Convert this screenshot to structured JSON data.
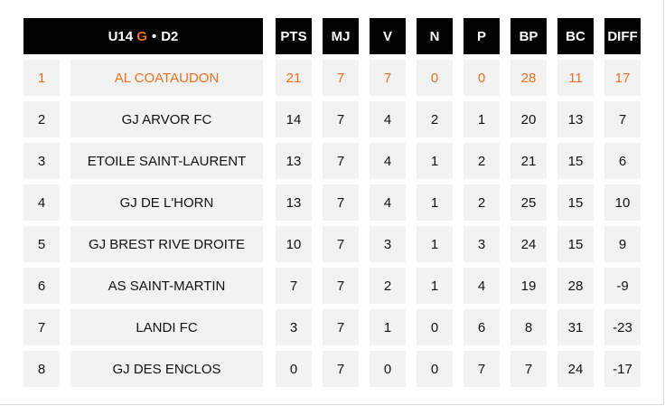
{
  "title": {
    "prefix": "U14",
    "accent": "G",
    "separator": "•",
    "division": "D2"
  },
  "columns": [
    "PTS",
    "MJ",
    "V",
    "N",
    "P",
    "BP",
    "BC",
    "DIFF"
  ],
  "rows": [
    {
      "rank": "1",
      "team": "AL COATAUDON",
      "stats": [
        "21",
        "7",
        "7",
        "0",
        "0",
        "28",
        "11",
        "17"
      ],
      "highlight": true
    },
    {
      "rank": "2",
      "team": "GJ ARVOR FC",
      "stats": [
        "14",
        "7",
        "4",
        "2",
        "1",
        "20",
        "13",
        "7"
      ]
    },
    {
      "rank": "3",
      "team": "ETOILE SAINT-LAURENT",
      "stats": [
        "13",
        "7",
        "4",
        "1",
        "2",
        "21",
        "15",
        "6"
      ]
    },
    {
      "rank": "4",
      "team": "GJ DE L'HORN",
      "stats": [
        "13",
        "7",
        "4",
        "1",
        "2",
        "25",
        "15",
        "10"
      ]
    },
    {
      "rank": "5",
      "team": "GJ BREST RIVE DROITE",
      "stats": [
        "10",
        "7",
        "3",
        "1",
        "3",
        "24",
        "15",
        "9"
      ]
    },
    {
      "rank": "6",
      "team": "AS SAINT-MARTIN",
      "stats": [
        "7",
        "7",
        "2",
        "1",
        "4",
        "19",
        "28",
        "-9"
      ]
    },
    {
      "rank": "7",
      "team": "LANDI FC",
      "stats": [
        "3",
        "7",
        "1",
        "0",
        "6",
        "8",
        "31",
        "-23"
      ]
    },
    {
      "rank": "8",
      "team": "GJ DES ENCLOS",
      "stats": [
        "0",
        "7",
        "0",
        "0",
        "7",
        "7",
        "24",
        "-17"
      ]
    }
  ],
  "colors": {
    "accent": "#e8701f",
    "header_bg": "#000000",
    "cell_bg": "#f2f2f2"
  }
}
